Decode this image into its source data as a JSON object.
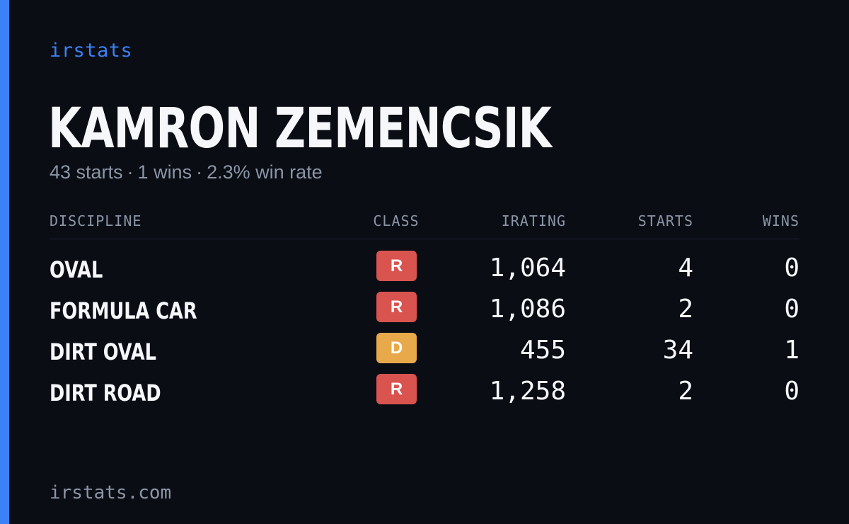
{
  "brand": "irstats",
  "player": {
    "name": "KAMRON ZEMENCSIK",
    "starts_text": "43 starts",
    "wins_text": "1 wins",
    "win_rate_text": "2.3% win rate",
    "separator": "·"
  },
  "table": {
    "headers": {
      "discipline": "DISCIPLINE",
      "class": "CLASS",
      "irating": "IRATING",
      "starts": "STARTS",
      "wins": "WINS"
    },
    "rows": [
      {
        "discipline": "OVAL",
        "class": "R",
        "class_color": "#d9534f",
        "irating": "1,064",
        "starts": "4",
        "wins": "0"
      },
      {
        "discipline": "FORMULA CAR",
        "class": "R",
        "class_color": "#d9534f",
        "irating": "1,086",
        "starts": "2",
        "wins": "0"
      },
      {
        "discipline": "DIRT OVAL",
        "class": "D",
        "class_color": "#e8a94a",
        "irating": "455",
        "starts": "34",
        "wins": "1"
      },
      {
        "discipline": "DIRT ROAD",
        "class": "R",
        "class_color": "#d9534f",
        "irating": "1,258",
        "starts": "2",
        "wins": "0"
      }
    ]
  },
  "footer": {
    "url": "irstats.com"
  },
  "colors": {
    "accent": "#3b82f6",
    "background": "#0a0d14",
    "muted_text": "#8b95a6"
  }
}
